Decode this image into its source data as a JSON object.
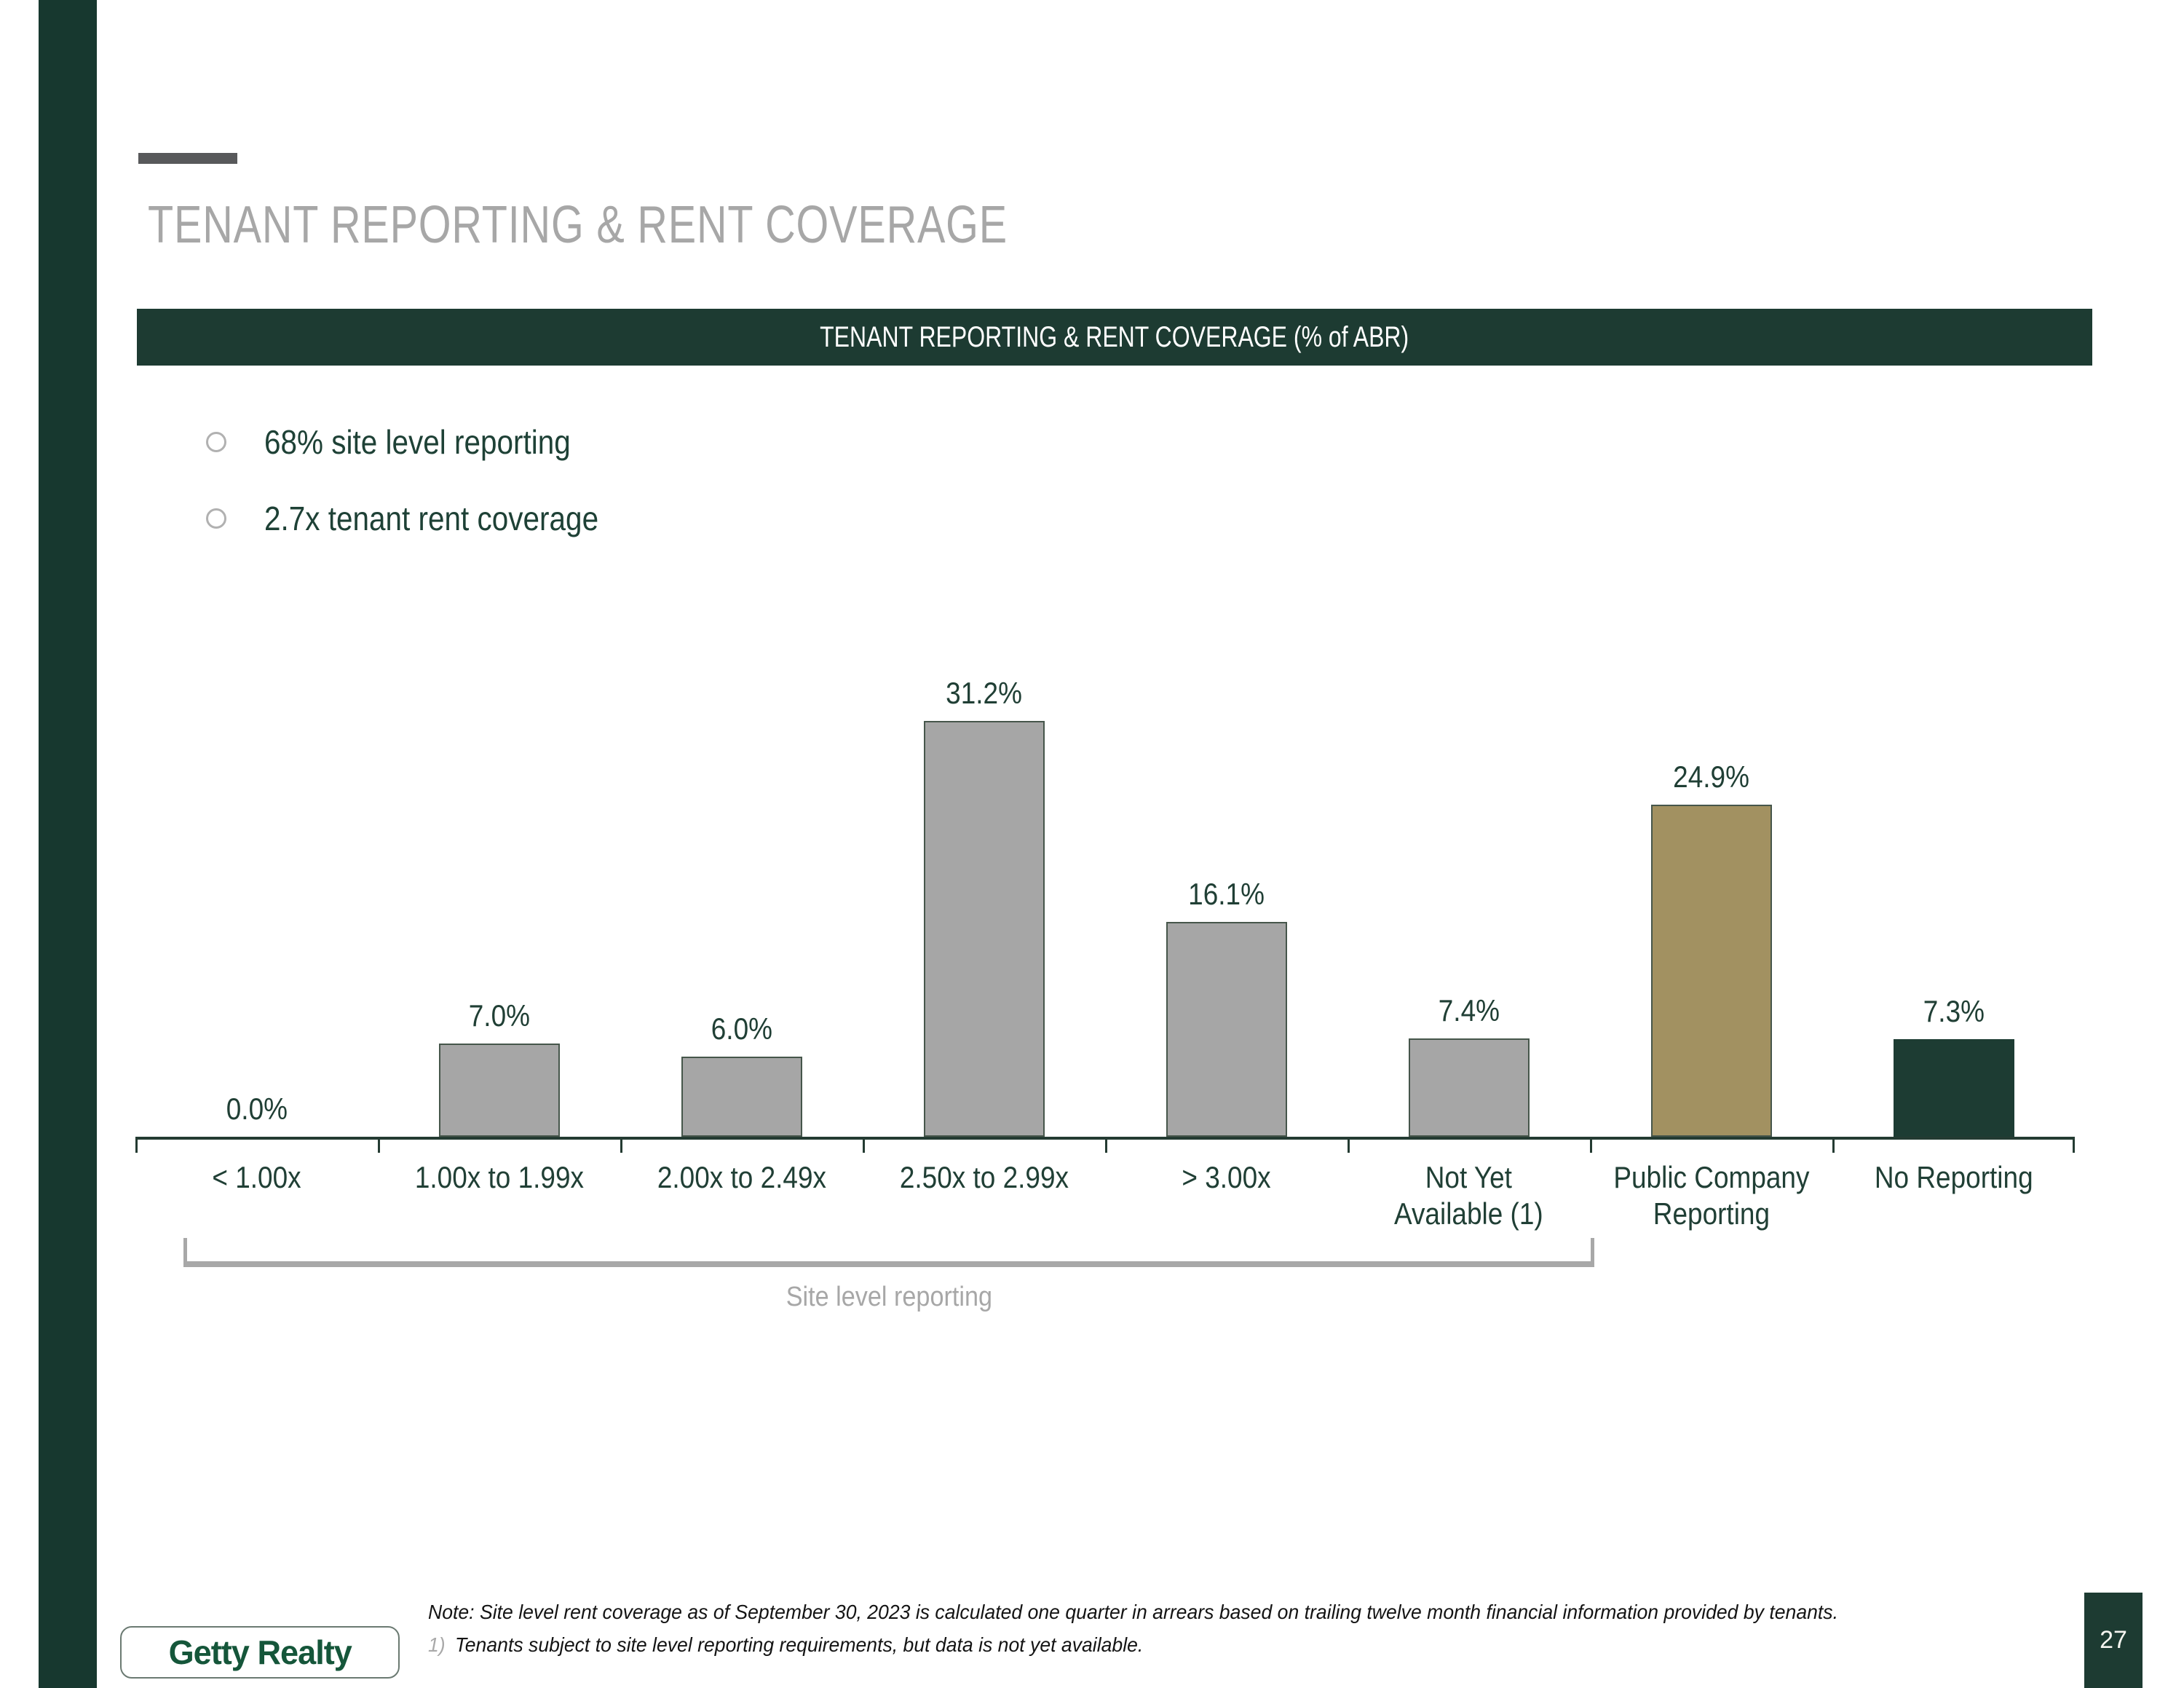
{
  "slide": {
    "title": "TENANT REPORTING & RENT COVERAGE",
    "page_number": "27"
  },
  "bullets": [
    {
      "label": "68% site level reporting"
    },
    {
      "label": "2.7x tenant rent coverage"
    }
  ],
  "chart_data": {
    "type": "bar",
    "title": "TENANT REPORTING & RENT COVERAGE (% of ABR)",
    "categories": [
      "< 1.00x",
      "1.00x to 1.99x",
      "2.00x to 2.49x",
      "2.50x to 2.99x",
      "> 3.00x",
      "Not Yet\nAvailable (1)",
      "Public Company\nReporting",
      "No Reporting"
    ],
    "values": [
      0.0,
      7.0,
      6.0,
      31.2,
      16.1,
      7.4,
      24.9,
      7.3
    ],
    "value_labels": [
      "0.0%",
      "7.0%",
      "6.0%",
      "31.2%",
      "16.1%",
      "7.4%",
      "24.9%",
      "7.3%"
    ],
    "bar_colors": [
      "#a6a6a6",
      "#a6a6a6",
      "#a6a6a6",
      "#a6a6a6",
      "#a6a6a6",
      "#a6a6a6",
      "#a29161",
      "#1d3c33"
    ],
    "bar_border_colors": [
      "#46564b",
      "#46564b",
      "#46564b",
      "#46564b",
      "#46564b",
      "#46564b",
      "#46564b",
      "#1d3c33"
    ],
    "ylim": [
      0,
      33
    ],
    "grid": false,
    "legend": null,
    "group_bracket": {
      "label": "Site level reporting",
      "from_category": 0,
      "to_category": 5
    }
  },
  "footnote": {
    "note": "Note: Site level rent coverage as of September 30, 2023 is calculated one quarter in arrears based on trailing twelve month financial information provided by tenants.",
    "item1_marker": "1)",
    "item1_text": "Tenants subject to site level reporting requirements, but data is not yet available."
  },
  "logo_text": "Getty Realty",
  "colors": {
    "dark_green": "#1d3b32",
    "strip_green": "#17382f",
    "bar_gray": "#a6a6a6",
    "bar_gold": "#a29161",
    "bar_dark": "#1d3c33",
    "title_gray": "#a7a7a7",
    "text_green": "#1e4136"
  }
}
